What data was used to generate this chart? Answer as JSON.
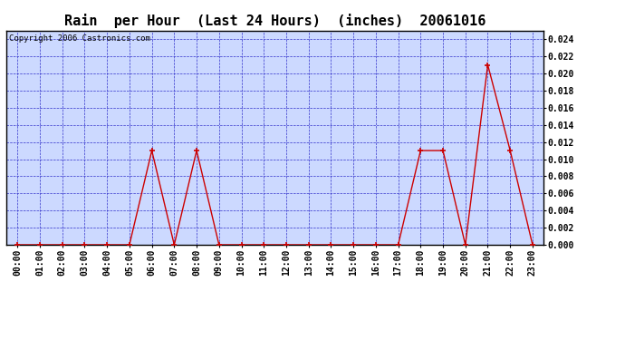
{
  "title": "Rain  per Hour  (Last 24 Hours)  (inches)  20061016",
  "copyright": "Copyright 2006 Castronics.com",
  "x_labels": [
    "00:00",
    "01:00",
    "02:00",
    "03:00",
    "04:00",
    "05:00",
    "06:00",
    "07:00",
    "08:00",
    "09:00",
    "10:00",
    "11:00",
    "12:00",
    "13:00",
    "14:00",
    "15:00",
    "16:00",
    "17:00",
    "18:00",
    "19:00",
    "20:00",
    "21:00",
    "22:00",
    "23:00"
  ],
  "y_values": [
    0.0,
    0.0,
    0.0,
    0.0,
    0.0,
    0.0,
    0.011,
    0.0,
    0.011,
    0.0,
    0.0,
    0.0,
    0.0,
    0.0,
    0.0,
    0.0,
    0.0,
    0.0,
    0.011,
    0.011,
    0.0,
    0.021,
    0.011,
    0.0
  ],
  "ylim": [
    0.0,
    0.025
  ],
  "yticks": [
    0.0,
    0.002,
    0.004,
    0.006,
    0.008,
    0.01,
    0.012,
    0.014,
    0.016,
    0.018,
    0.02,
    0.022,
    0.024
  ],
  "line_color": "#cc0000",
  "marker_color": "#cc0000",
  "bg_color": "#ccd9ff",
  "grid_color": "#3333cc",
  "border_color": "#000000",
  "title_fontsize": 11,
  "copyright_fontsize": 6.5,
  "tick_fontsize": 7,
  "figsize": [
    6.9,
    3.75
  ],
  "dpi": 100
}
